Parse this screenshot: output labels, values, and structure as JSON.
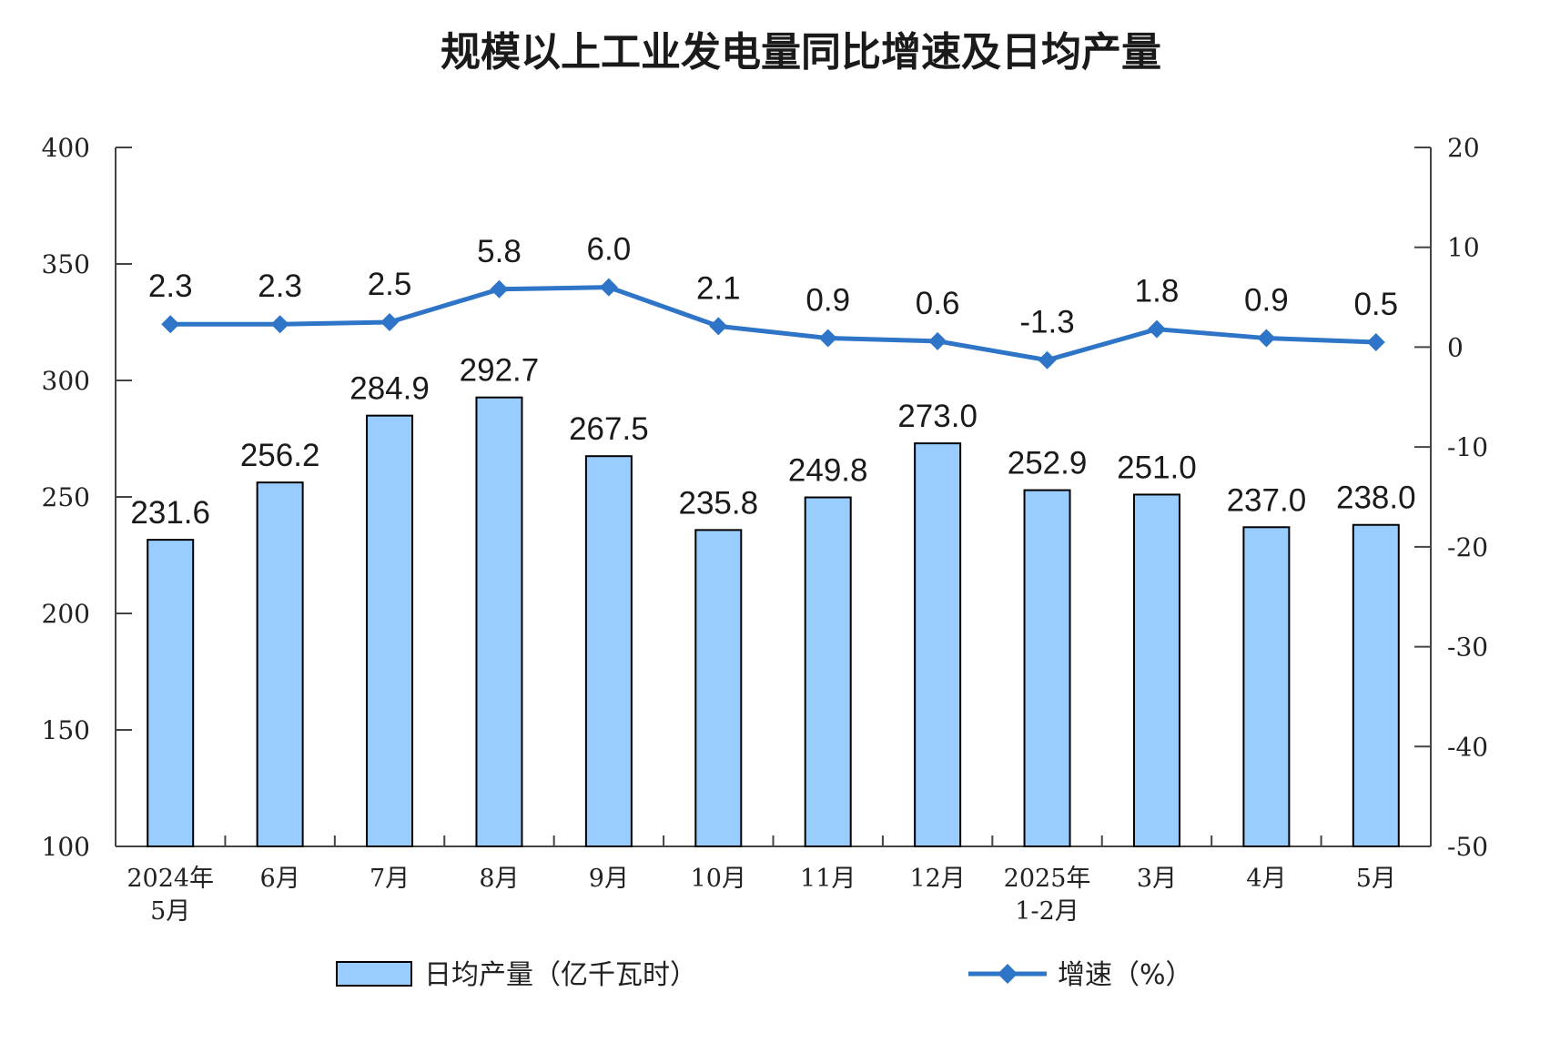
{
  "chart_data": {
    "type": "bar+line",
    "title": "规模以上工业发电量同比增速及日均产量",
    "categories": [
      [
        "2024年",
        "5月"
      ],
      [
        "6月"
      ],
      [
        "7月"
      ],
      [
        "8月"
      ],
      [
        "9月"
      ],
      [
        "10月"
      ],
      [
        "11月"
      ],
      [
        "12月"
      ],
      [
        "2025年",
        "1-2月"
      ],
      [
        "3月"
      ],
      [
        "4月"
      ],
      [
        "5月"
      ]
    ],
    "left_axis": {
      "min": 100,
      "max": 400,
      "ticks": [
        100,
        150,
        200,
        250,
        300,
        350,
        400
      ]
    },
    "right_axis": {
      "min": -50,
      "max": 20,
      "ticks": [
        -50,
        -40,
        -30,
        -20,
        -10,
        0,
        10,
        20
      ]
    },
    "series": [
      {
        "name": "日均产量（亿千瓦时）",
        "type": "bar",
        "axis": "left",
        "color": "#99ccff",
        "values": [
          231.6,
          256.2,
          284.9,
          292.7,
          267.5,
          235.8,
          249.8,
          273.0,
          252.9,
          251.0,
          237.0,
          238.0
        ],
        "labels": [
          "231.6",
          "256.2",
          "284.9",
          "292.7",
          "267.5",
          "235.8",
          "249.8",
          "273.0",
          "252.9",
          "251.0",
          "237.0",
          "238.0"
        ]
      },
      {
        "name": "增速（%）",
        "type": "line",
        "axis": "right",
        "color": "#2e75c7",
        "values": [
          2.3,
          2.3,
          2.5,
          5.8,
          6.0,
          2.1,
          0.9,
          0.6,
          -1.3,
          1.8,
          0.9,
          0.5
        ],
        "labels": [
          "2.3",
          "2.3",
          "2.5",
          "5.8",
          "6.0",
          "2.1",
          "0.9",
          "0.6",
          "-1.3",
          "1.8",
          "0.9",
          "0.5"
        ]
      }
    ],
    "legend": "bottom-center"
  }
}
